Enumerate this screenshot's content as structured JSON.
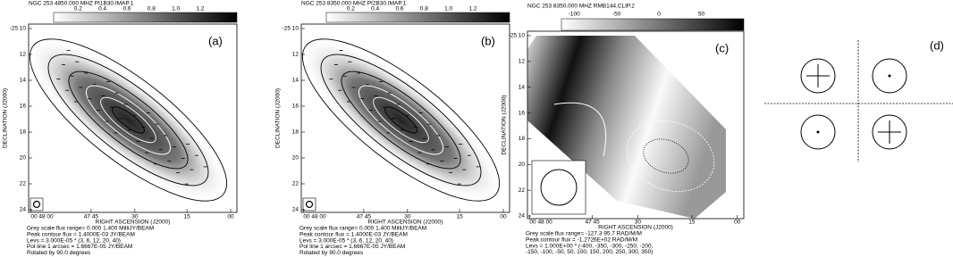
{
  "panels": [
    {
      "header": "NGC 253   4850.000 MHZ   PI1B30.IMAP.1",
      "colorbar_ticks": [
        "0.2",
        "0.4",
        "0.6",
        "0.8",
        "1.0",
        "1.2"
      ],
      "label": "(a)",
      "y_ticks": [
        "-25 10",
        "12",
        "14",
        "16",
        "18",
        "20",
        "22",
        "24"
      ],
      "y_label": "DECLINATION (J2000)",
      "x_ticks": [
        "00 48 00",
        "47 45",
        "30",
        "15",
        "00"
      ],
      "x_label": "RIGHT ASCENSION (J2000)",
      "footer": [
        "Grey scale flux range= 0.000 1.400 MilliJY/BEAM",
        "Peak contour flux = 1.4000E-03 JY/BEAM",
        "Levs = 3.000E-05 * (3, 6, 12, 20, 40)",
        "Pol line 1 arcsec = 1.6667E-05 JY/BEAM",
        "Rotated by 90.0 degrees"
      ]
    },
    {
      "header": "NGC 253   8350.000 MHZ   PI2B30.IMAP.1",
      "colorbar_ticks": [
        "0.2",
        "0.4",
        "0.6",
        "0.8",
        "1.0",
        "1.2"
      ],
      "label": "(b)",
      "y_ticks": [
        "-25 10",
        "12",
        "14",
        "16",
        "18",
        "20",
        "22",
        "24"
      ],
      "y_label": "DECLINATION (J2000)",
      "x_ticks": [
        "00 48 00",
        "47 45",
        "30",
        "15",
        "00"
      ],
      "x_label": "RIGHT ASCENSION (J2000)",
      "footer": [
        "Grey scale flux range= 0.000 1.400 MilliJY/BEAM",
        "Peak contour flux = 1.4000E-03 JY/BEAM",
        "Levs = 3.000E-05 * (3, 6, 12, 20, 40)",
        "Pol line 1 arcsec = 1.6667E-05 JY/BEAM",
        "Rotated by 90.0 degrees"
      ]
    },
    {
      "header": "NGC 253   8350.000 MHZ   RMB144.CLIP.2",
      "colorbar_ticks": [
        "-100",
        "-50",
        "0",
        "50"
      ],
      "label": "(c)",
      "y_ticks": [
        "-25 10",
        "12",
        "14",
        "16",
        "18",
        "20",
        "22",
        "24"
      ],
      "y_label": "DECLINATION (J2000)",
      "x_ticks": [
        "00 48 00",
        "47 45",
        "30",
        "15",
        "00"
      ],
      "x_label": "RIGHT ASCENSION (J2000)",
      "footer": [
        "Grey scale flux range= -127.3 95.7 RAD/M/M",
        "Peak contour flux = -1.2726E+02 RAD/M/M",
        "Levs = 1.000E+00 * (-400, -350, -300, -250, -200,",
        "-150, -100, -50, 50, 100, 150, 200, 250, 300, 350)"
      ]
    }
  ],
  "panel_d": {
    "label": "(d)"
  }
}
